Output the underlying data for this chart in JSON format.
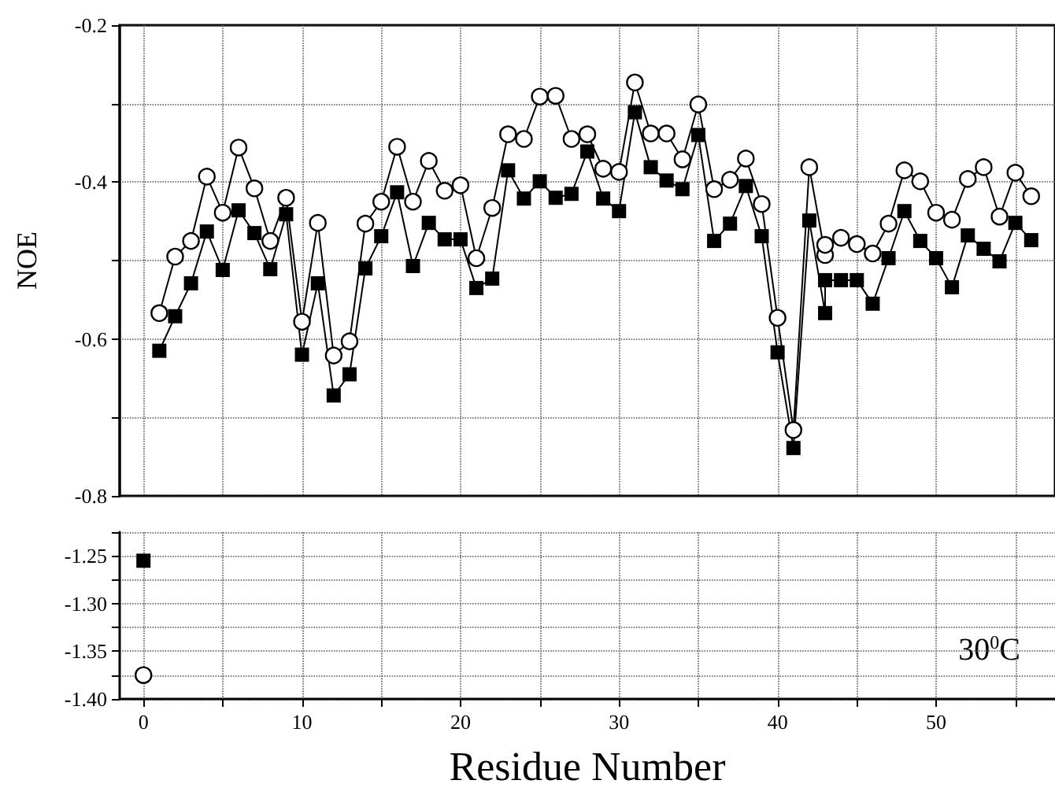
{
  "chart_data": [
    {
      "type": "line",
      "ylabel": "NOE",
      "xlim": [
        -1.5,
        57.5
      ],
      "ylim": [
        -0.8,
        -0.2
      ],
      "xticks": [
        {
          "value": 0,
          "label": null
        },
        {
          "value": 5,
          "label": null
        },
        {
          "value": 10,
          "label": null
        },
        {
          "value": 15,
          "label": null
        },
        {
          "value": 20,
          "label": null
        },
        {
          "value": 25,
          "label": null
        },
        {
          "value": 30,
          "label": null
        },
        {
          "value": 35,
          "label": null
        },
        {
          "value": 40,
          "label": null
        },
        {
          "value": 45,
          "label": null
        },
        {
          "value": 50,
          "label": null
        },
        {
          "value": 55,
          "label": null
        }
      ],
      "yticks": [
        -0.8,
        {
          "value": -0.7,
          "label": null
        },
        -0.6,
        {
          "value": -0.5,
          "label": null
        },
        -0.4,
        {
          "value": -0.3,
          "label": null
        },
        -0.2
      ],
      "tick_labels": "y",
      "grid": true,
      "series": [
        {
          "color": "#000000",
          "marker": "circle",
          "x": [
            1,
            2,
            3,
            4,
            5,
            6,
            7,
            8,
            9,
            10,
            11,
            12,
            13,
            14,
            15,
            16,
            17,
            18,
            19,
            20,
            21,
            22,
            23,
            24,
            25,
            26,
            27,
            28,
            29,
            30,
            31,
            32,
            33,
            34,
            35,
            36,
            37,
            38,
            39,
            40,
            41,
            42,
            43,
            43,
            44,
            45,
            46,
            47,
            48,
            49,
            50,
            51,
            52,
            53,
            54,
            55,
            56
          ],
          "values": [
            -0.567,
            -0.495,
            -0.475,
            -0.393,
            -0.439,
            -0.356,
            -0.408,
            -0.475,
            -0.42,
            -0.578,
            -0.452,
            -0.621,
            -0.603,
            -0.453,
            -0.425,
            -0.355,
            -0.425,
            -0.373,
            -0.411,
            -0.404,
            -0.497,
            -0.433,
            -0.339,
            -0.345,
            -0.291,
            -0.29,
            -0.345,
            -0.339,
            -0.383,
            -0.387,
            -0.273,
            -0.338,
            -0.338,
            -0.371,
            -0.301,
            -0.409,
            -0.397,
            -0.37,
            -0.428,
            -0.573,
            -0.716,
            -0.381,
            -0.493,
            -0.48,
            -0.471,
            -0.479,
            -0.491,
            -0.453,
            -0.385,
            -0.399,
            -0.439,
            -0.448,
            -0.396,
            -0.381,
            -0.444,
            -0.388,
            -0.418
          ]
        },
        {
          "color": "#000000",
          "marker": "square",
          "x": [
            1,
            2,
            3,
            4,
            5,
            6,
            7,
            8,
            9,
            10,
            11,
            12,
            13,
            14,
            15,
            16,
            17,
            18,
            19,
            20,
            21,
            22,
            23,
            24,
            25,
            26,
            27,
            28,
            29,
            30,
            31,
            32,
            33,
            34,
            35,
            36,
            37,
            38,
            39,
            40,
            41,
            42,
            43,
            43,
            44,
            45,
            46,
            47,
            48,
            49,
            50,
            51,
            52,
            53,
            54,
            55,
            56
          ],
          "values": [
            -0.615,
            -0.571,
            -0.529,
            -0.463,
            -0.512,
            -0.436,
            -0.465,
            -0.511,
            -0.441,
            -0.62,
            -0.529,
            -0.672,
            -0.645,
            -0.51,
            -0.469,
            -0.413,
            -0.507,
            -0.452,
            -0.473,
            -0.473,
            -0.535,
            -0.523,
            -0.385,
            -0.421,
            -0.399,
            -0.42,
            -0.415,
            -0.361,
            -0.421,
            -0.437,
            -0.311,
            -0.381,
            -0.398,
            -0.409,
            -0.34,
            -0.475,
            -0.453,
            -0.405,
            -0.469,
            -0.617,
            -0.739,
            -0.449,
            -0.567,
            -0.525,
            -0.525,
            -0.525,
            -0.555,
            -0.497,
            -0.437,
            -0.475,
            -0.497,
            -0.534,
            -0.468,
            -0.485,
            -0.501,
            -0.452,
            -0.474
          ]
        }
      ]
    },
    {
      "type": "line",
      "xlabel": "Residue Number",
      "xlim": [
        -1.5,
        57.5
      ],
      "ylim": [
        -1.4,
        -1.225
      ],
      "xticks": [
        0,
        {
          "value": 5,
          "label": null
        },
        10,
        {
          "value": 15,
          "label": null
        },
        20,
        {
          "value": 25,
          "label": null
        },
        30,
        {
          "value": 35,
          "label": null
        },
        40,
        {
          "value": 45,
          "label": null
        },
        50,
        {
          "value": 55,
          "label": null
        }
      ],
      "yticks": [
        {
          "value": -1.4,
          "label": "-1.40"
        },
        {
          "value": -1.375,
          "label": null
        },
        -1.35,
        {
          "value": -1.325,
          "label": null
        },
        {
          "value": -1.3,
          "label": "-1.30"
        },
        {
          "value": -1.275,
          "label": null
        },
        -1.25,
        {
          "value": -1.225,
          "label": null
        }
      ],
      "grid": true,
      "annotations": [
        "30$^{0}$C"
      ],
      "series": [
        {
          "color": "#000000",
          "marker": "circle",
          "x": [
            0
          ],
          "values": [
            -1.375
          ]
        },
        {
          "color": "#000000",
          "marker": "square",
          "x": [
            0
          ],
          "values": [
            -1.255
          ]
        }
      ]
    }
  ]
}
